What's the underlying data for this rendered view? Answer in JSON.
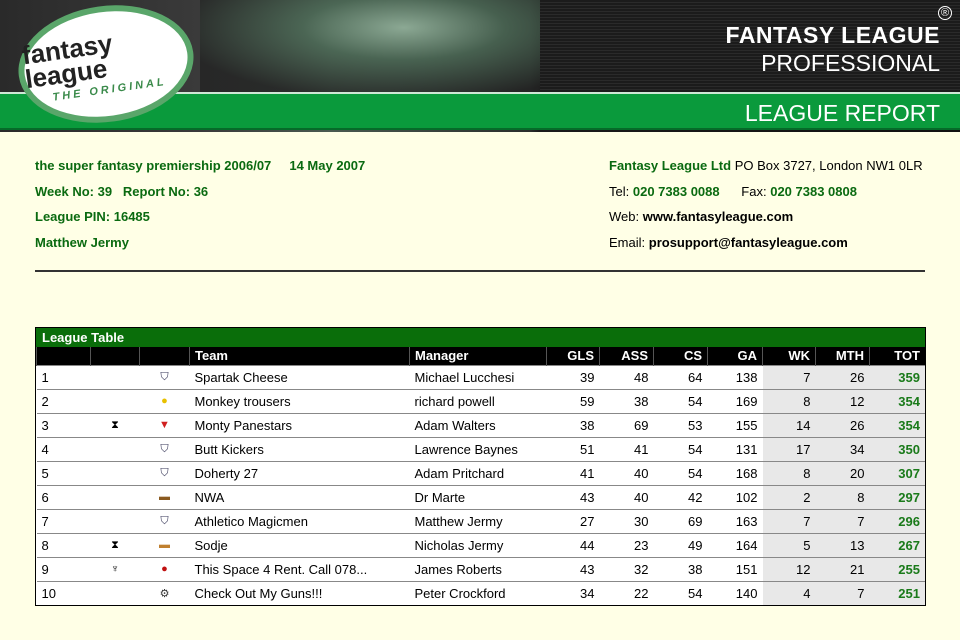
{
  "header": {
    "logo_text": "fantasy league",
    "logo_tagline": "THE ORIGINAL",
    "brand_line1": "FANTASY LEAGUE",
    "brand_line2": "PROFESSIONAL",
    "registered": "®",
    "section": "LEAGUE REPORT"
  },
  "league": {
    "name": "the super fantasy premiership 2006/07",
    "date": "14 May 2007",
    "week": "Week No: 39",
    "report": "Report No: 36",
    "pin": "League PIN: 16485",
    "manager": "Matthew Jermy"
  },
  "contact": {
    "company": "Fantasy League Ltd",
    "address": "PO Box 3727, London NW1 0LR",
    "tel_label": "Tel:",
    "tel": "020 7383 0088",
    "fax_label": "Fax:",
    "fax": "020 7383 0808",
    "web_label": "Web:",
    "web": "www.fantasyleague.com",
    "email_label": "Email:",
    "email": "prosupport@fantasyleague.com"
  },
  "table": {
    "title": "League Table",
    "columns": [
      "",
      "",
      "",
      "Team",
      "Manager",
      "GLS",
      "ASS",
      "CS",
      "GA",
      "WK",
      "MTH",
      "TOT"
    ],
    "rows": [
      {
        "pos": "1",
        "trophy": "",
        "badge": "shield-icon",
        "team": "Spartak Cheese",
        "manager": "Michael Lucchesi",
        "gls": 39,
        "ass": 48,
        "cs": 64,
        "ga": 138,
        "wk": 7,
        "mth": 26,
        "tot": 359
      },
      {
        "pos": "2",
        "trophy": "",
        "badge": "batman-icon",
        "team": "Monkey trousers",
        "manager": "richard powell",
        "gls": 59,
        "ass": 38,
        "cs": 54,
        "ga": 169,
        "wk": 8,
        "mth": 12,
        "tot": 354
      },
      {
        "pos": "3",
        "trophy": "hourglass-trophy-icon",
        "badge": "superman-icon",
        "team": "Monty Panestars",
        "manager": "Adam Walters",
        "gls": 38,
        "ass": 69,
        "cs": 53,
        "ga": 155,
        "wk": 14,
        "mth": 26,
        "tot": 354
      },
      {
        "pos": "4",
        "trophy": "",
        "badge": "shield-icon",
        "team": "Butt Kickers",
        "manager": "Lawrence Baynes",
        "gls": 51,
        "ass": 41,
        "cs": 54,
        "ga": 131,
        "wk": 17,
        "mth": 34,
        "tot": 350
      },
      {
        "pos": "5",
        "trophy": "",
        "badge": "shield-icon",
        "team": "Doherty 27",
        "manager": "Adam Pritchard",
        "gls": 41,
        "ass": 40,
        "cs": 54,
        "ga": 168,
        "wk": 8,
        "mth": 20,
        "tot": 307
      },
      {
        "pos": "6",
        "trophy": "",
        "badge": "cigar-icon",
        "team": "NWA",
        "manager": "Dr Marte",
        "gls": 43,
        "ass": 40,
        "cs": 42,
        "ga": 102,
        "wk": 2,
        "mth": 8,
        "tot": 297
      },
      {
        "pos": "7",
        "trophy": "",
        "badge": "shield-icon",
        "team": "Athletico Magicmen",
        "manager": "Matthew Jermy",
        "gls": 27,
        "ass": 30,
        "cs": 69,
        "ga": 163,
        "wk": 7,
        "mth": 7,
        "tot": 296
      },
      {
        "pos": "8",
        "trophy": "hourglass-trophy-icon",
        "badge": "burger-icon",
        "team": "Sodje",
        "manager": "Nicholas Jermy",
        "gls": 44,
        "ass": 23,
        "cs": 49,
        "ga": 164,
        "wk": 5,
        "mth": 13,
        "tot": 267
      },
      {
        "pos": "9",
        "trophy": "cup-trophy-icon",
        "badge": "face-icon",
        "team": "This Space 4 Rent. Call 078...",
        "manager": "James Roberts",
        "gls": 43,
        "ass": 32,
        "cs": 38,
        "ga": 151,
        "wk": 12,
        "mth": 21,
        "tot": 255
      },
      {
        "pos": "10",
        "trophy": "",
        "badge": "motorbike-icon",
        "team": "Check Out My Guns!!!",
        "manager": "Peter Crockford",
        "gls": 34,
        "ass": 22,
        "cs": 54,
        "ga": 140,
        "wk": 4,
        "mth": 7,
        "tot": 251
      }
    ]
  },
  "colors": {
    "green_bar": "#0a9a3c",
    "text_green": "#0a6a10",
    "table_title": "#0a6e0a",
    "total": "#1a7a1a"
  }
}
